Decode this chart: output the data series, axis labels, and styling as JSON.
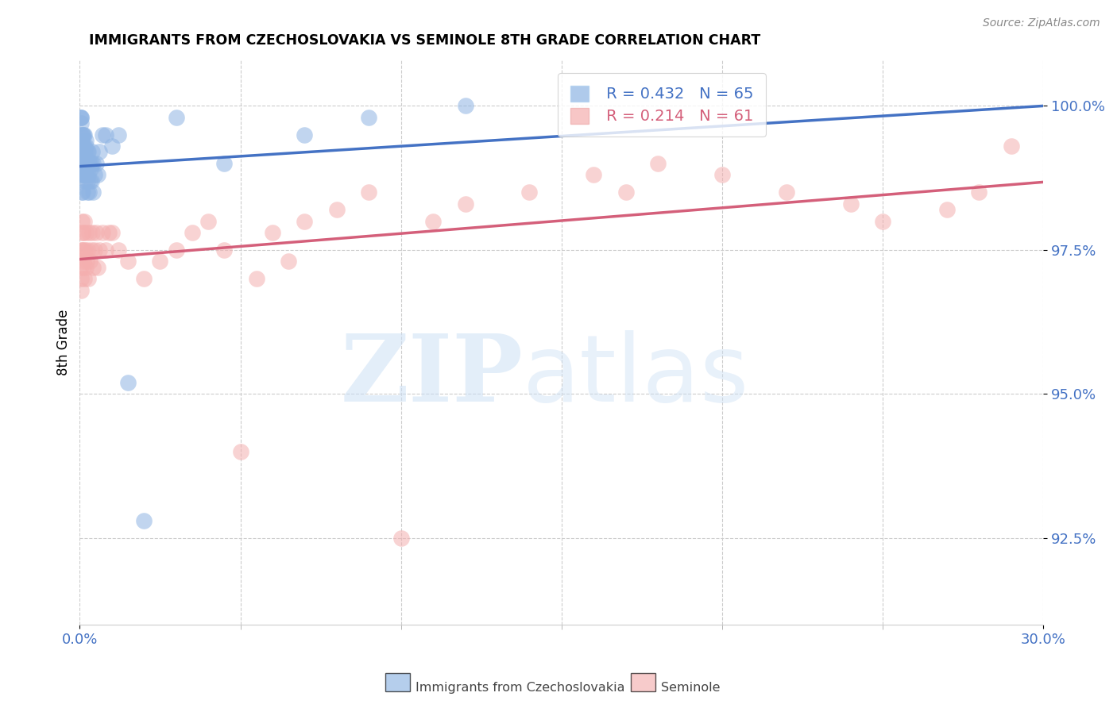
{
  "title": "IMMIGRANTS FROM CZECHOSLOVAKIA VS SEMINOLE 8TH GRADE CORRELATION CHART",
  "source": "Source: ZipAtlas.com",
  "ylabel": "8th Grade",
  "yticks": [
    92.5,
    95.0,
    97.5,
    100.0
  ],
  "ytick_labels": [
    "92.5%",
    "95.0%",
    "97.5%",
    "100.0%"
  ],
  "xmin": 0.0,
  "xmax": 30.0,
  "ymin": 91.0,
  "ymax": 100.8,
  "blue_R": 0.432,
  "blue_N": 65,
  "pink_R": 0.214,
  "pink_N": 61,
  "legend_label_blue": "Immigrants from Czechoslovakia",
  "legend_label_pink": "Seminole",
  "blue_color": "#8eb4e3",
  "pink_color": "#f4afaf",
  "blue_line_color": "#4472c4",
  "pink_line_color": "#d45f7a",
  "blue_scatter_x": [
    0.02,
    0.03,
    0.04,
    0.05,
    0.05,
    0.06,
    0.06,
    0.07,
    0.07,
    0.08,
    0.08,
    0.08,
    0.09,
    0.09,
    0.1,
    0.1,
    0.1,
    0.11,
    0.11,
    0.12,
    0.12,
    0.13,
    0.13,
    0.14,
    0.15,
    0.15,
    0.16,
    0.17,
    0.18,
    0.18,
    0.19,
    0.2,
    0.21,
    0.22,
    0.23,
    0.24,
    0.25,
    0.25,
    0.26,
    0.27,
    0.28,
    0.3,
    0.31,
    0.32,
    0.33,
    0.35,
    0.37,
    0.38,
    0.4,
    0.42,
    0.45,
    0.5,
    0.55,
    0.6,
    0.7,
    0.8,
    1.0,
    1.2,
    1.5,
    2.0,
    3.0,
    4.5,
    7.0,
    9.0,
    12.0
  ],
  "blue_scatter_y": [
    99.8,
    99.8,
    99.7,
    99.8,
    99.5,
    99.3,
    99.0,
    98.8,
    98.5,
    99.5,
    99.3,
    99.1,
    98.8,
    98.5,
    99.5,
    99.2,
    98.9,
    99.3,
    99.0,
    99.5,
    99.2,
    98.8,
    99.0,
    99.3,
    99.5,
    99.0,
    98.7,
    99.2,
    99.4,
    98.9,
    99.1,
    99.3,
    98.8,
    99.0,
    99.2,
    98.7,
    99.0,
    98.5,
    99.2,
    98.8,
    99.0,
    98.5,
    99.0,
    98.7,
    98.9,
    99.0,
    98.7,
    99.2,
    98.5,
    99.0,
    98.8,
    99.0,
    98.8,
    99.2,
    99.5,
    99.5,
    99.3,
    99.5,
    95.2,
    92.8,
    99.8,
    99.0,
    99.5,
    99.8,
    100.0
  ],
  "pink_scatter_x": [
    0.02,
    0.03,
    0.04,
    0.05,
    0.06,
    0.07,
    0.08,
    0.09,
    0.1,
    0.11,
    0.12,
    0.13,
    0.15,
    0.17,
    0.18,
    0.2,
    0.22,
    0.25,
    0.27,
    0.3,
    0.32,
    0.35,
    0.38,
    0.4,
    0.45,
    0.5,
    0.55,
    0.6,
    0.7,
    0.8,
    0.9,
    1.0,
    1.2,
    1.5,
    2.0,
    2.5,
    3.0,
    3.5,
    4.0,
    5.0,
    5.5,
    6.0,
    7.0,
    8.0,
    9.0,
    10.0,
    12.0,
    14.0,
    16.0,
    18.0,
    20.0,
    22.0,
    24.0,
    25.0,
    27.0,
    28.0,
    29.0,
    17.0,
    11.0,
    6.5,
    4.5
  ],
  "pink_scatter_y": [
    97.2,
    97.5,
    96.8,
    97.0,
    98.0,
    97.5,
    97.8,
    97.2,
    97.8,
    97.3,
    97.5,
    97.0,
    98.0,
    97.5,
    97.2,
    97.8,
    97.3,
    97.5,
    97.0,
    97.8,
    97.3,
    97.5,
    97.8,
    97.2,
    97.5,
    97.8,
    97.2,
    97.5,
    97.8,
    97.5,
    97.8,
    97.8,
    97.5,
    97.3,
    97.0,
    97.3,
    97.5,
    97.8,
    98.0,
    94.0,
    97.0,
    97.8,
    98.0,
    98.2,
    98.5,
    92.5,
    98.3,
    98.5,
    98.8,
    99.0,
    98.8,
    98.5,
    98.3,
    98.0,
    98.2,
    98.5,
    99.3,
    98.5,
    98.0,
    97.3,
    97.5
  ]
}
